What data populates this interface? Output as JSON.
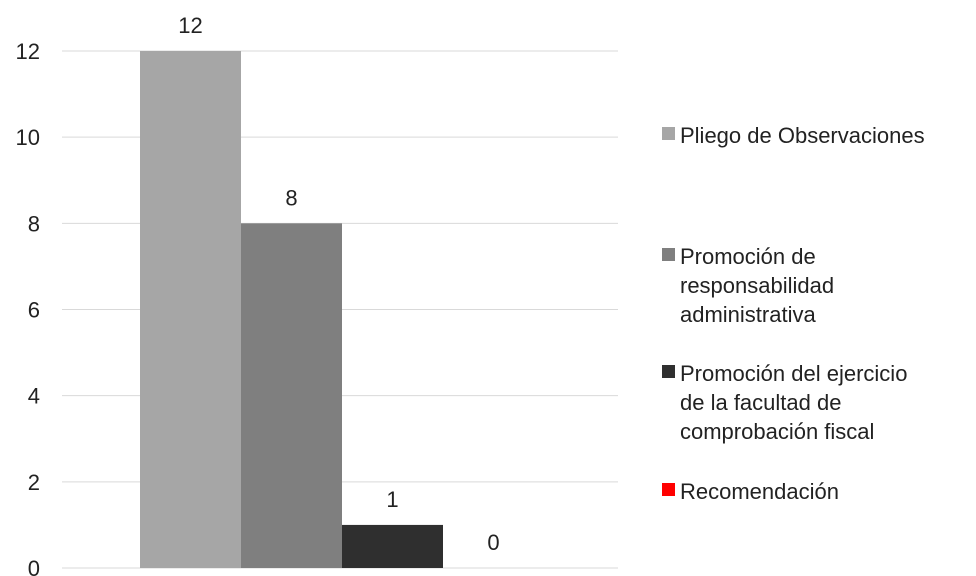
{
  "chart_data": {
    "type": "bar",
    "title": "",
    "xlabel": "",
    "ylabel": "",
    "ylim": [
      0,
      12
    ],
    "yticks": [
      "0",
      "2",
      "4",
      "6",
      "8",
      "10",
      "12"
    ],
    "grid": true,
    "legend_position": "right",
    "series": [
      {
        "name": "Pliego de Observaciones",
        "values": [
          12
        ],
        "label": "12",
        "color": "#a6a6a6"
      },
      {
        "name": "Promoción de responsabilidad administrativa",
        "values": [
          8
        ],
        "label": "8",
        "color": "#7f7f7f"
      },
      {
        "name": "Promoción del ejercicio de la facultad de comprobación fiscal",
        "values": [
          1
        ],
        "label": "1",
        "color": "#2f2f2f"
      },
      {
        "name": "Recomendación",
        "values": [
          0
        ],
        "label": "0",
        "color": "#ff0000"
      }
    ]
  }
}
